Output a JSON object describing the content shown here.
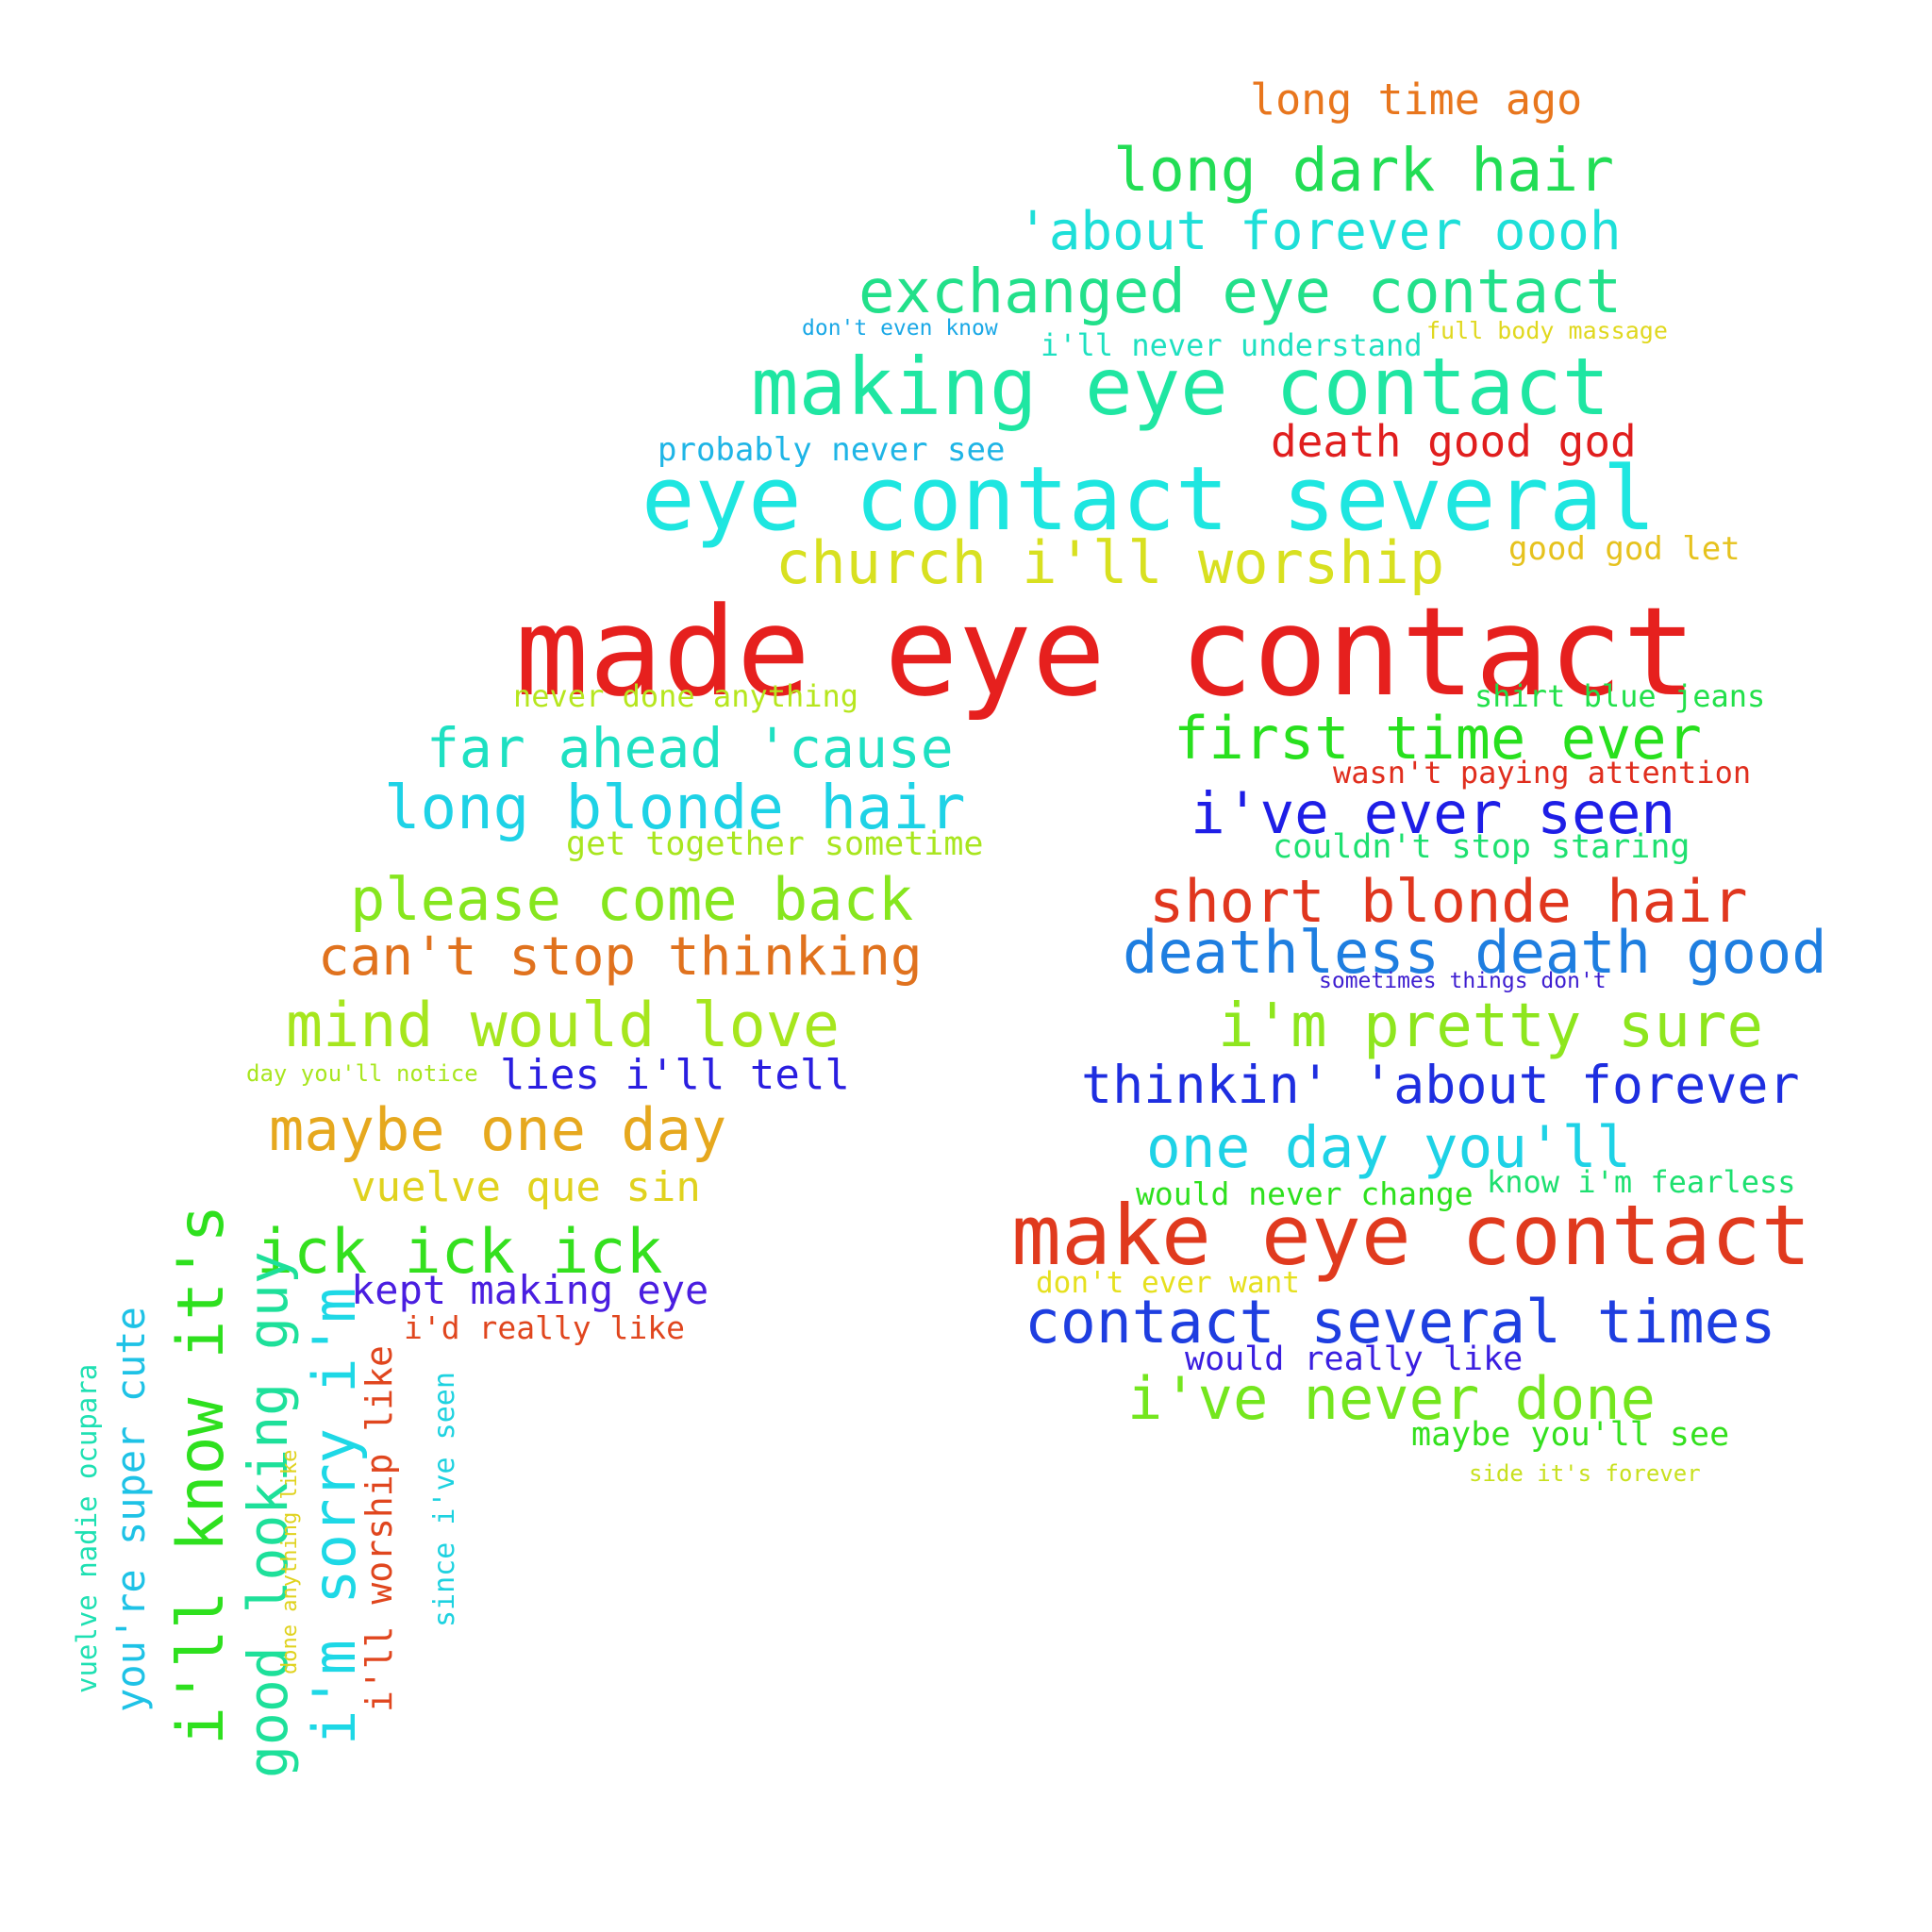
{
  "words": [
    {
      "text": "long time ago",
      "color": "#e8761d"
    },
    {
      "text": "long dark hair",
      "color": "#22dd55"
    },
    {
      "text": "'about forever oooh",
      "color": "#1edfd8"
    },
    {
      "text": "exchanged eye contact",
      "color": "#22e08a"
    },
    {
      "text": "don't even know",
      "color": "#1aa8e6"
    },
    {
      "text": "i'll never understand",
      "color": "#1ee0c0"
    },
    {
      "text": "full body massage",
      "color": "#e0d81e"
    },
    {
      "text": "making eye contact",
      "color": "#1fe6a2"
    },
    {
      "text": "probably never see",
      "color": "#1fb5e6"
    },
    {
      "text": "death good god",
      "color": "#e01e1e"
    },
    {
      "text": "eye contact several",
      "color": "#1ee6e0"
    },
    {
      "text": "church i'll worship",
      "color": "#d8e020"
    },
    {
      "text": "good god let",
      "color": "#e6c21e"
    },
    {
      "text": "made eye contact",
      "color": "#e6201e"
    },
    {
      "text": "never done anything",
      "color": "#b6e61e"
    },
    {
      "text": "shirt blue jeans",
      "color": "#22e04a"
    },
    {
      "text": "far ahead 'cause",
      "color": "#1ee0c2"
    },
    {
      "text": "first time ever",
      "color": "#28e01e"
    },
    {
      "text": "wasn't paying attention",
      "color": "#e02e1e"
    },
    {
      "text": "long blonde hair",
      "color": "#1ed2e6"
    },
    {
      "text": "i've ever seen",
      "color": "#1e1ee6"
    },
    {
      "text": "get together sometime",
      "color": "#a8e61e"
    },
    {
      "text": "couldn't stop staring",
      "color": "#1ee070"
    },
    {
      "text": "please come back",
      "color": "#86e61e"
    },
    {
      "text": "short blonde hair",
      "color": "#e0361e"
    },
    {
      "text": "can't stop thinking",
      "color": "#e0721e"
    },
    {
      "text": "deathless death good",
      "color": "#1e7ee0"
    },
    {
      "text": "sometimes things don't",
      "color": "#3e1ed0"
    },
    {
      "text": "mind would love",
      "color": "#a6e61e"
    },
    {
      "text": "i'm pretty sure",
      "color": "#8ee61e"
    },
    {
      "text": "day you'll notice",
      "color": "#a8e61e"
    },
    {
      "text": "lies i'll tell",
      "color": "#2a1ee0"
    },
    {
      "text": "thinkin' 'about forever",
      "color": "#1e2ee0"
    },
    {
      "text": "maybe one day",
      "color": "#e6a81e"
    },
    {
      "text": "one day you'll",
      "color": "#1ed2e6"
    },
    {
      "text": "vuelve que sin",
      "color": "#e0d21e"
    },
    {
      "text": "would never change",
      "color": "#2ee01e"
    },
    {
      "text": "know i'm fearless",
      "color": "#1ee070"
    },
    {
      "text": "ick ick ick",
      "color": "#34e01e"
    },
    {
      "text": "make eye contact",
      "color": "#e03a1e"
    },
    {
      "text": "kept making eye",
      "color": "#4a1ee0"
    },
    {
      "text": "don't ever want",
      "color": "#e6e01e"
    },
    {
      "text": "i'd really like",
      "color": "#e0461e"
    },
    {
      "text": "contact several times",
      "color": "#1e3ee0"
    },
    {
      "text": "would really like",
      "color": "#3a1ee0"
    },
    {
      "text": "i've never done",
      "color": "#74e61e"
    },
    {
      "text": "maybe you'll see",
      "color": "#34e01e"
    },
    {
      "text": "side it's forever",
      "color": "#c8e01e"
    },
    {
      "text": "i'll know it's",
      "color": "#2ee01e"
    },
    {
      "text": "good looking guy",
      "color": "#1ee09a"
    },
    {
      "text": "you're super cute",
      "color": "#1ec2e6"
    },
    {
      "text": "vuelve nadie ocupara",
      "color": "#1ee0b2"
    },
    {
      "text": "i'm sorry i'm",
      "color": "#1ed8e6"
    },
    {
      "text": "done anything like",
      "color": "#e0d21e"
    },
    {
      "text": "i'll worship like",
      "color": "#e0461e"
    },
    {
      "text": "since i've seen",
      "color": "#1ed2e0"
    }
  ]
}
